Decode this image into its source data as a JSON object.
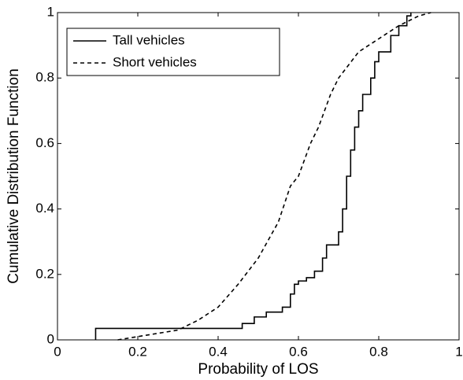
{
  "chart_data": {
    "type": "line",
    "xlabel": "Probability of LOS",
    "ylabel": "Cumulative Distribution Function",
    "xlim": [
      0,
      1
    ],
    "ylim": [
      0,
      1
    ],
    "xticks": [
      0,
      0.2,
      0.4,
      0.6,
      0.8,
      1
    ],
    "yticks": [
      0,
      0.2,
      0.4,
      0.6,
      0.8,
      1
    ],
    "grid": false,
    "legend": "upper left",
    "series": [
      {
        "name": "Tall vehicles",
        "color": "#000000",
        "line_style": "solid",
        "x": [
          0.095,
          0.095,
          0.46,
          0.46,
          0.49,
          0.49,
          0.52,
          0.52,
          0.56,
          0.56,
          0.58,
          0.58,
          0.59,
          0.59,
          0.6,
          0.6,
          0.62,
          0.62,
          0.64,
          0.64,
          0.66,
          0.66,
          0.67,
          0.67,
          0.7,
          0.7,
          0.71,
          0.71,
          0.72,
          0.72,
          0.73,
          0.73,
          0.74,
          0.74,
          0.75,
          0.75,
          0.76,
          0.76,
          0.78,
          0.78,
          0.79,
          0.79,
          0.8,
          0.8,
          0.83,
          0.83,
          0.85,
          0.85,
          0.87,
          0.87,
          0.88,
          0.88
        ],
        "values": [
          0,
          0.035,
          0.035,
          0.05,
          0.05,
          0.07,
          0.07,
          0.085,
          0.085,
          0.1,
          0.1,
          0.14,
          0.14,
          0.17,
          0.17,
          0.18,
          0.18,
          0.19,
          0.19,
          0.21,
          0.21,
          0.25,
          0.25,
          0.29,
          0.29,
          0.33,
          0.33,
          0.4,
          0.4,
          0.5,
          0.5,
          0.58,
          0.58,
          0.65,
          0.65,
          0.7,
          0.7,
          0.75,
          0.75,
          0.8,
          0.8,
          0.85,
          0.85,
          0.88,
          0.88,
          0.93,
          0.93,
          0.96,
          0.96,
          0.99,
          0.99,
          1
        ]
      },
      {
        "name": "Short vehicles",
        "color": "#000000",
        "line_style": "dashed",
        "x": [
          0.15,
          0.2,
          0.25,
          0.3,
          0.35,
          0.4,
          0.45,
          0.5,
          0.55,
          0.58,
          0.6,
          0.63,
          0.65,
          0.68,
          0.7,
          0.75,
          0.8,
          0.85,
          0.9,
          0.93
        ],
        "values": [
          0,
          0.01,
          0.02,
          0.03,
          0.06,
          0.1,
          0.17,
          0.25,
          0.36,
          0.47,
          0.5,
          0.6,
          0.65,
          0.75,
          0.8,
          0.88,
          0.92,
          0.96,
          0.99,
          1
        ]
      }
    ]
  }
}
